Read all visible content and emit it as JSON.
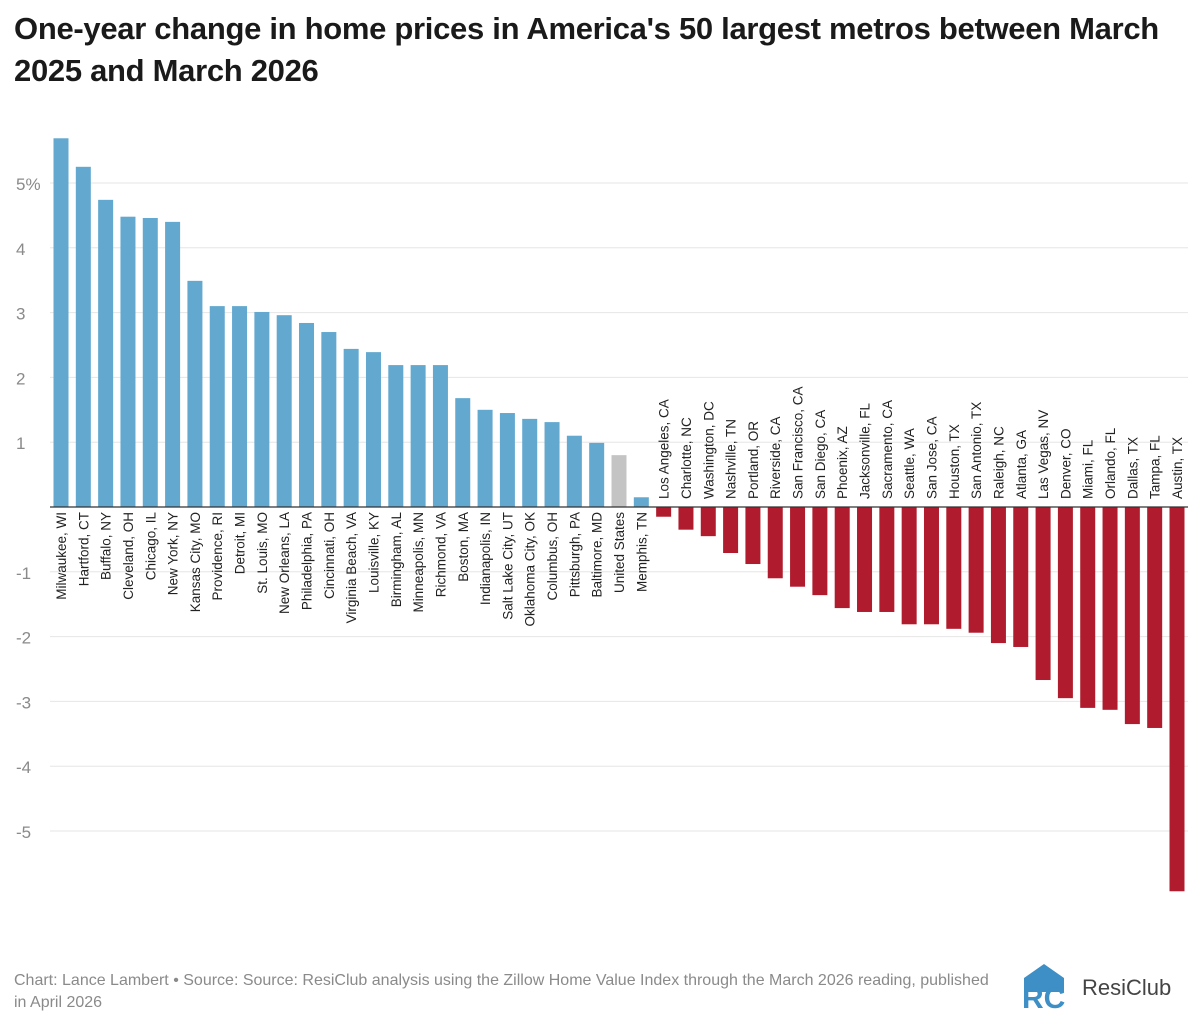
{
  "title": "One-year change in home prices in America's 50 largest metros between March 2025 and March 2026",
  "footer": "Chart: Lance Lambert • Source: Source: ResiClub analysis using the Zillow Home Value Index through the March 2026 reading, published in April 2026",
  "logo": {
    "text": "ResiClub",
    "mark": "RC"
  },
  "colors": {
    "positive": "#62a8cf",
    "negative": "#b01c2e",
    "national": "#c4c4c4",
    "grid": "#e6e6e6",
    "axis_text": "#8a8a8a"
  },
  "chart_data": {
    "type": "bar",
    "title": "One-year change in home prices in America's 50 largest metros between March 2025 and March 2026",
    "ylim": [
      -6,
      5.8
    ],
    "yticks": [
      -5,
      -4,
      -3,
      -2,
      -1,
      0,
      1,
      2,
      3,
      4,
      5
    ],
    "ytick_labels": [
      "-5",
      "-4",
      "-3",
      "-2",
      "-1",
      "",
      "1",
      "2",
      "3",
      "4",
      "5%"
    ],
    "grid": true,
    "categories": [
      "Milwaukee, WI",
      "Hartford, CT",
      "Buffalo, NY",
      "Cleveland, OH",
      "Chicago, IL",
      "New York, NY",
      "Kansas City, MO",
      "Providence, RI",
      "Detroit, MI",
      "St. Louis, MO",
      "New Orleans, LA",
      "Philadelphia, PA",
      "Cincinnati, OH",
      "Virginia Beach, VA",
      "Louisville, KY",
      "Birmingham, AL",
      "Minneapolis, MN",
      "Richmond, VA",
      "Boston, MA",
      "Indianapolis, IN",
      "Salt Lake City, UT",
      "Oklahoma City, OK",
      "Columbus, OH",
      "Pittsburgh, PA",
      "Baltimore, MD",
      "United States",
      "Memphis, TN",
      "Los Angeles, CA",
      "Charlotte, NC",
      "Washington, DC",
      "Nashville, TN",
      "Portland, OR",
      "Riverside, CA",
      "San Francisco, CA",
      "San Diego, CA",
      "Phoenix, AZ",
      "Jacksonville, FL",
      "Sacramento, CA",
      "Seattle, WA",
      "San Jose, CA",
      "Houston, TX",
      "San Antonio, TX",
      "Raleigh, NC",
      "Atlanta, GA",
      "Las Vegas, NV",
      "Denver, CO",
      "Miami, FL",
      "Orlando, FL",
      "Dallas, TX",
      "Tampa, FL",
      "Austin, TX"
    ],
    "values": [
      5.69,
      5.25,
      4.74,
      4.48,
      4.46,
      4.4,
      3.49,
      3.1,
      3.1,
      3.01,
      2.96,
      2.84,
      2.7,
      2.44,
      2.39,
      2.19,
      2.19,
      2.19,
      1.68,
      1.5,
      1.45,
      1.36,
      1.31,
      1.1,
      0.99,
      0.8,
      0.15,
      -0.15,
      -0.35,
      -0.45,
      -0.71,
      -0.88,
      -1.1,
      -1.23,
      -1.36,
      -1.56,
      -1.62,
      -1.62,
      -1.81,
      -1.81,
      -1.88,
      -1.94,
      -2.1,
      -2.16,
      -2.67,
      -2.95,
      -3.1,
      -3.13,
      -3.35,
      -3.41,
      -5.93
    ],
    "highlight": "United States"
  }
}
